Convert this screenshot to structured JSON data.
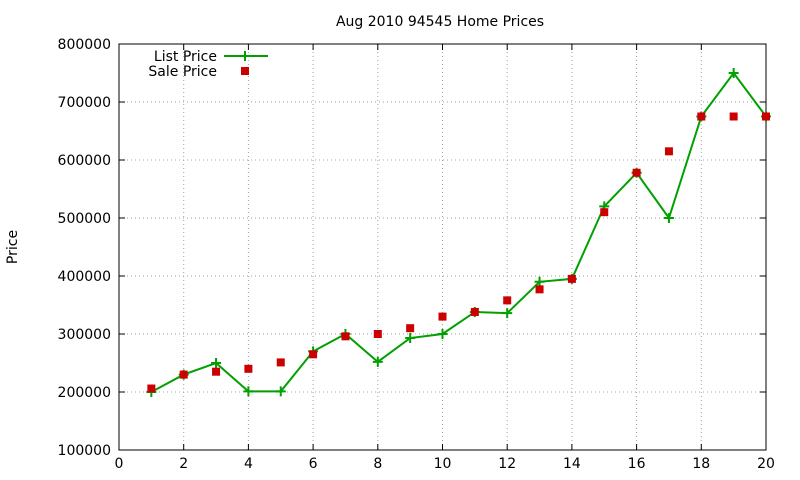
{
  "chart_data": {
    "type": "line",
    "title": "Aug 2010 94545 Home Prices",
    "xlabel": "",
    "ylabel": "Price",
    "xlim": [
      0,
      20
    ],
    "ylim": [
      100000,
      800000
    ],
    "xticks": [
      0,
      2,
      4,
      6,
      8,
      10,
      12,
      14,
      16,
      18,
      20
    ],
    "yticks": [
      100000,
      200000,
      300000,
      400000,
      500000,
      600000,
      700000,
      800000
    ],
    "x_tick_labels": [
      "0",
      "2",
      "4",
      "6",
      "8",
      "10",
      "12",
      "14",
      "16",
      "18",
      "20"
    ],
    "y_tick_labels": [
      "100000",
      "200000",
      "300000",
      "400000",
      "500000",
      "600000",
      "700000",
      "800000"
    ],
    "grid": true,
    "legend_position": "top-left",
    "series": [
      {
        "name": "List Price",
        "style": "line-plus",
        "color": "#00a000",
        "x": [
          1,
          2,
          3,
          4,
          5,
          6,
          7,
          8,
          9,
          10,
          11,
          12,
          13,
          14,
          15,
          16,
          17,
          18,
          19,
          20
        ],
        "y": [
          200000,
          230000,
          250000,
          201000,
          201000,
          270000,
          300000,
          252000,
          293000,
          300000,
          338000,
          336000,
          390000,
          395000,
          520000,
          578000,
          500000,
          675000,
          750000,
          675000
        ]
      },
      {
        "name": "Sale Price",
        "style": "square-points",
        "color": "#cc0000",
        "x": [
          1,
          2,
          3,
          4,
          5,
          6,
          7,
          8,
          9,
          10,
          11,
          12,
          13,
          14,
          15,
          16,
          17,
          18,
          19,
          20
        ],
        "y": [
          206000,
          230000,
          235000,
          240000,
          251000,
          265000,
          296000,
          300000,
          310000,
          330000,
          338000,
          358000,
          377000,
          395000,
          510000,
          578000,
          615000,
          675000,
          675000,
          675000
        ]
      }
    ]
  }
}
